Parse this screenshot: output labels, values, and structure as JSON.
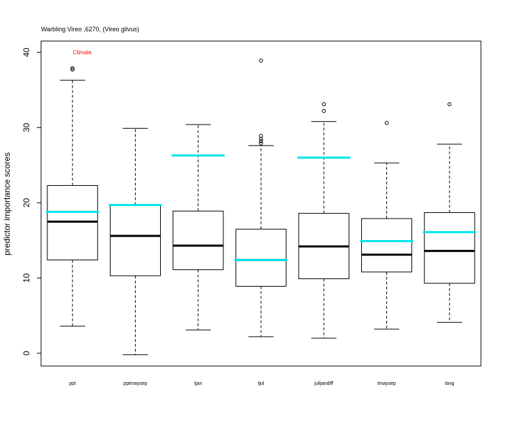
{
  "chart_data": {
    "type": "boxplot",
    "title": "Warbling Vireo ,6270, (Vireo gilvus)",
    "ylabel": "predictor importance scores",
    "xlabel": "",
    "ylim": [
      -1.7,
      41.5
    ],
    "yticks": [
      0,
      10,
      20,
      30,
      40
    ],
    "grid": false,
    "annotation": {
      "text": "Climate",
      "color": "#ff0000",
      "category": "ppt",
      "y": 40
    },
    "box_color": "#000000",
    "median_color": "#000000",
    "highlight_color": "#00e5ee",
    "categories": [
      "ppt",
      "pptmaysep",
      "tjan",
      "tjul",
      "julijandiff",
      "tmaysep",
      "tavg"
    ],
    "boxes": [
      {
        "whisker_low": 3.6,
        "q1": 12.4,
        "median": 17.5,
        "q3": 22.3,
        "whisker_high": 36.3,
        "outliers": [
          37.7,
          37.9
        ],
        "highlight": 18.8
      },
      {
        "whisker_low": -0.2,
        "q1": 10.3,
        "median": 15.6,
        "q3": 19.7,
        "whisker_high": 29.9,
        "outliers": [],
        "highlight": 19.7
      },
      {
        "whisker_low": 3.1,
        "q1": 11.1,
        "median": 14.3,
        "q3": 18.9,
        "whisker_high": 30.4,
        "outliers": [],
        "highlight": 26.3
      },
      {
        "whisker_low": 2.2,
        "q1": 8.9,
        "median": 12.4,
        "q3": 16.5,
        "whisker_high": 27.6,
        "outliers": [
          27.9,
          28.2,
          28.5,
          28.9,
          38.9
        ],
        "highlight": 12.4
      },
      {
        "whisker_low": 2.0,
        "q1": 9.9,
        "median": 14.2,
        "q3": 18.6,
        "whisker_high": 30.8,
        "outliers": [
          32.2,
          33.1
        ],
        "highlight": 26.0
      },
      {
        "whisker_low": 3.2,
        "q1": 10.8,
        "median": 13.1,
        "q3": 17.9,
        "whisker_high": 25.3,
        "outliers": [
          30.6
        ],
        "highlight": 14.9
      },
      {
        "whisker_low": 4.1,
        "q1": 9.3,
        "median": 13.6,
        "q3": 18.7,
        "whisker_high": 27.8,
        "outliers": [
          33.1
        ],
        "highlight": 16.1
      }
    ]
  }
}
